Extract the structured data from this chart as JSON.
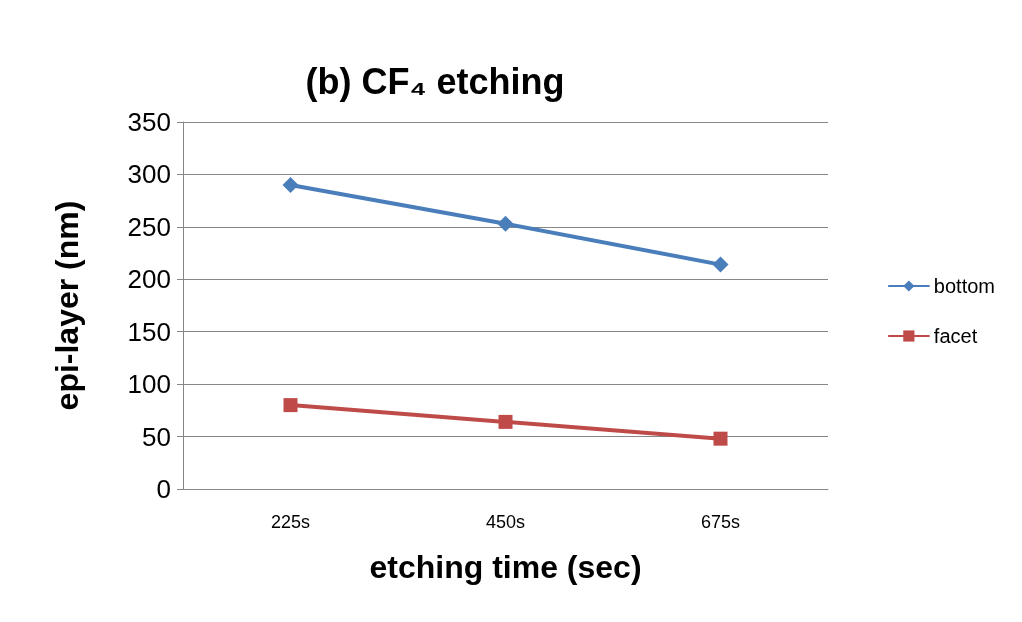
{
  "chart_data": {
    "type": "line",
    "title": "(b) CF₄ etching",
    "xlabel": "etching time (sec)",
    "ylabel": "epi-layer (nm)",
    "categories": [
      "225s",
      "450s",
      "675s"
    ],
    "series": [
      {
        "name": "bottom",
        "color": "#4a7ebb",
        "marker": "diamond",
        "values": [
          290,
          253,
          214
        ]
      },
      {
        "name": "facet",
        "color": "#be4b48",
        "marker": "square",
        "values": [
          80,
          64,
          48
        ]
      }
    ],
    "ylim": [
      0,
      350
    ],
    "yticks": [
      0,
      50,
      100,
      150,
      200,
      250,
      300,
      350
    ],
    "grid": "y",
    "legend": "right"
  }
}
